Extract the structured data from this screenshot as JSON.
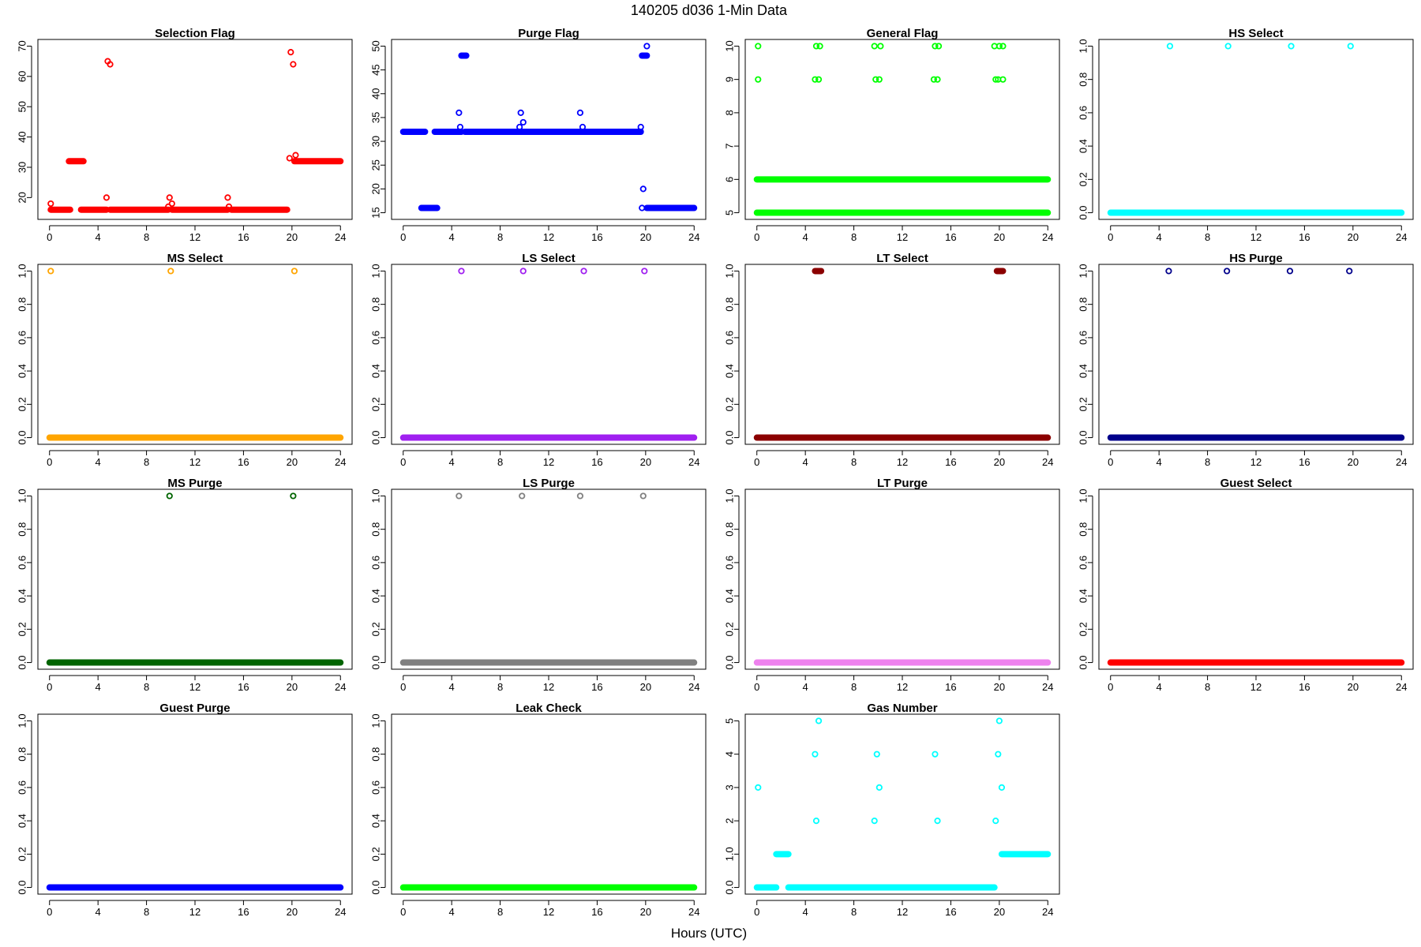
{
  "figure": {
    "title": "140205   d036   1-Min Data",
    "xlabel": "Hours (UTC)"
  },
  "chart_data": [
    {
      "type": "scatter",
      "title": "Selection Flag",
      "color": "#ff0000",
      "xlim": [
        0,
        24
      ],
      "ylim": [
        15,
        70
      ],
      "yticks": [
        20,
        30,
        40,
        50,
        60,
        70
      ],
      "segments": [
        {
          "x0": 0.1,
          "x1": 1.7,
          "y": 16
        },
        {
          "x0": 1.6,
          "x1": 2.8,
          "y": 32
        },
        {
          "x0": 2.6,
          "x1": 4.7,
          "y": 16
        },
        {
          "x0": 5.0,
          "x1": 9.8,
          "y": 16
        },
        {
          "x0": 10.1,
          "x1": 14.7,
          "y": 16
        },
        {
          "x0": 15.0,
          "x1": 19.6,
          "y": 16
        },
        {
          "x0": 20.2,
          "x1": 24.0,
          "y": 32
        }
      ],
      "points": [
        [
          0.1,
          18
        ],
        [
          4.7,
          20
        ],
        [
          4.8,
          65
        ],
        [
          5.0,
          64
        ],
        [
          9.8,
          17
        ],
        [
          9.9,
          20
        ],
        [
          10.1,
          18
        ],
        [
          14.7,
          20
        ],
        [
          14.8,
          17
        ],
        [
          19.8,
          33
        ],
        [
          19.9,
          68
        ],
        [
          20.1,
          64
        ],
        [
          20.3,
          34
        ]
      ]
    },
    {
      "type": "scatter",
      "title": "Purge Flag",
      "color": "#0000ff",
      "xlim": [
        0,
        24
      ],
      "ylim": [
        15,
        50
      ],
      "yticks": [
        15,
        20,
        25,
        30,
        35,
        40,
        45,
        50
      ],
      "segments": [
        {
          "x0": 0.0,
          "x1": 1.8,
          "y": 32
        },
        {
          "x0": 1.5,
          "x1": 2.8,
          "y": 16
        },
        {
          "x0": 2.6,
          "x1": 4.8,
          "y": 32
        },
        {
          "x0": 4.8,
          "x1": 5.2,
          "y": 48
        },
        {
          "x0": 5.1,
          "x1": 19.6,
          "y": 32
        },
        {
          "x0": 19.7,
          "x1": 20.1,
          "y": 48
        },
        {
          "x0": 20.1,
          "x1": 24.0,
          "y": 16
        }
      ],
      "points": [
        [
          4.6,
          36
        ],
        [
          4.7,
          33
        ],
        [
          9.6,
          33
        ],
        [
          9.7,
          36
        ],
        [
          9.9,
          34
        ],
        [
          14.6,
          36
        ],
        [
          14.8,
          33
        ],
        [
          19.6,
          33
        ],
        [
          19.7,
          16
        ],
        [
          19.8,
          20
        ],
        [
          20.1,
          50
        ]
      ]
    },
    {
      "type": "scatter",
      "title": "General Flag",
      "color": "#00ff00",
      "xlim": [
        0,
        24
      ],
      "ylim": [
        5,
        10
      ],
      "yticks": [
        5,
        6,
        7,
        8,
        9,
        10
      ],
      "segments": [
        {
          "x0": 0.0,
          "x1": 24.0,
          "y": 6
        },
        {
          "x0": 0.0,
          "x1": 24.0,
          "y": 5
        }
      ],
      "points": [
        [
          0.1,
          9
        ],
        [
          0.1,
          10
        ],
        [
          4.8,
          9
        ],
        [
          4.9,
          10
        ],
        [
          5.1,
          9
        ],
        [
          5.2,
          10
        ],
        [
          9.7,
          10
        ],
        [
          9.8,
          9
        ],
        [
          10.1,
          9
        ],
        [
          10.2,
          10
        ],
        [
          14.6,
          9
        ],
        [
          14.7,
          10
        ],
        [
          14.9,
          9
        ],
        [
          15.0,
          10
        ],
        [
          19.6,
          10
        ],
        [
          19.7,
          9
        ],
        [
          19.9,
          9
        ],
        [
          20.0,
          10
        ],
        [
          20.3,
          10
        ],
        [
          20.3,
          9
        ]
      ]
    },
    {
      "type": "scatter",
      "title": "HS Select",
      "color": "#00ffff",
      "xlim": [
        0,
        24
      ],
      "ylim": [
        0,
        1
      ],
      "yticks": [
        0,
        0.2,
        0.4,
        0.6,
        0.8,
        1
      ],
      "segments": [
        {
          "x0": 0.0,
          "x1": 24.0,
          "y": 0
        }
      ],
      "points": [
        [
          4.9,
          1
        ],
        [
          9.7,
          1
        ],
        [
          14.9,
          1
        ],
        [
          19.8,
          1
        ]
      ]
    },
    {
      "type": "scatter",
      "title": "MS Select",
      "color": "#ffa500",
      "xlim": [
        0,
        24
      ],
      "ylim": [
        0,
        1
      ],
      "yticks": [
        0,
        0.2,
        0.4,
        0.6,
        0.8,
        1
      ],
      "segments": [
        {
          "x0": 0.0,
          "x1": 24.0,
          "y": 0
        }
      ],
      "points": [
        [
          0.1,
          1
        ],
        [
          10.0,
          1
        ],
        [
          20.2,
          1
        ]
      ]
    },
    {
      "type": "scatter",
      "title": "LS Select",
      "color": "#a020f0",
      "xlim": [
        0,
        24
      ],
      "ylim": [
        0,
        1
      ],
      "yticks": [
        0,
        0.2,
        0.4,
        0.6,
        0.8,
        1
      ],
      "segments": [
        {
          "x0": 0.0,
          "x1": 24.0,
          "y": 0
        }
      ],
      "points": [
        [
          4.8,
          1
        ],
        [
          9.9,
          1
        ],
        [
          14.9,
          1
        ],
        [
          19.9,
          1
        ]
      ]
    },
    {
      "type": "scatter",
      "title": "LT Select",
      "color": "#8b0000",
      "xlim": [
        0,
        24
      ],
      "ylim": [
        0,
        1
      ],
      "yticks": [
        0,
        0.2,
        0.4,
        0.6,
        0.8,
        1
      ],
      "segments": [
        {
          "x0": 0.0,
          "x1": 24.0,
          "y": 0
        },
        {
          "x0": 4.8,
          "x1": 5.3,
          "y": 1
        },
        {
          "x0": 19.8,
          "x1": 20.3,
          "y": 1
        }
      ],
      "points": []
    },
    {
      "type": "scatter",
      "title": "HS Purge",
      "color": "#00008b",
      "xlim": [
        0,
        24
      ],
      "ylim": [
        0,
        1
      ],
      "yticks": [
        0,
        0.2,
        0.4,
        0.6,
        0.8,
        1
      ],
      "segments": [
        {
          "x0": 0.0,
          "x1": 24.0,
          "y": 0
        }
      ],
      "points": [
        [
          4.8,
          1
        ],
        [
          9.6,
          1
        ],
        [
          14.8,
          1
        ],
        [
          19.7,
          1
        ]
      ]
    },
    {
      "type": "scatter",
      "title": "MS Purge",
      "color": "#006400",
      "xlim": [
        0,
        24
      ],
      "ylim": [
        0,
        1
      ],
      "yticks": [
        0,
        0.2,
        0.4,
        0.6,
        0.8,
        1
      ],
      "segments": [
        {
          "x0": 0.0,
          "x1": 24.0,
          "y": 0
        }
      ],
      "points": [
        [
          9.9,
          1
        ],
        [
          20.1,
          1
        ]
      ]
    },
    {
      "type": "scatter",
      "title": "LS Purge",
      "color": "#808080",
      "xlim": [
        0,
        24
      ],
      "ylim": [
        0,
        1
      ],
      "yticks": [
        0,
        0.2,
        0.4,
        0.6,
        0.8,
        1
      ],
      "segments": [
        {
          "x0": 0.0,
          "x1": 24.0,
          "y": 0
        }
      ],
      "points": [
        [
          4.6,
          1
        ],
        [
          9.8,
          1
        ],
        [
          14.6,
          1
        ],
        [
          19.8,
          1
        ]
      ]
    },
    {
      "type": "scatter",
      "title": "LT Purge",
      "color": "#ee82ee",
      "xlim": [
        0,
        24
      ],
      "ylim": [
        0,
        1
      ],
      "yticks": [
        0,
        0.2,
        0.4,
        0.6,
        0.8,
        1
      ],
      "segments": [
        {
          "x0": 0.0,
          "x1": 24.0,
          "y": 0
        }
      ],
      "points": []
    },
    {
      "type": "scatter",
      "title": "Guest Select",
      "color": "#ff0000",
      "xlim": [
        0,
        24
      ],
      "ylim": [
        0,
        1
      ],
      "yticks": [
        0,
        0.2,
        0.4,
        0.6,
        0.8,
        1
      ],
      "segments": [
        {
          "x0": 0.0,
          "x1": 24.0,
          "y": 0
        }
      ],
      "points": []
    },
    {
      "type": "scatter",
      "title": "Guest Purge",
      "color": "#0000ff",
      "xlim": [
        0,
        24
      ],
      "ylim": [
        0,
        1
      ],
      "yticks": [
        0,
        0.2,
        0.4,
        0.6,
        0.8,
        1
      ],
      "segments": [
        {
          "x0": 0.0,
          "x1": 24.0,
          "y": 0
        }
      ],
      "points": []
    },
    {
      "type": "scatter",
      "title": "Leak Check",
      "color": "#00ff00",
      "xlim": [
        0,
        24
      ],
      "ylim": [
        0,
        1
      ],
      "yticks": [
        0,
        0.2,
        0.4,
        0.6,
        0.8,
        1
      ],
      "segments": [
        {
          "x0": 0.0,
          "x1": 24.0,
          "y": 0
        }
      ],
      "points": []
    },
    {
      "type": "scatter",
      "title": "Gas Number",
      "color": "#00ffff",
      "xlim": [
        0,
        24
      ],
      "ylim": [
        0,
        5
      ],
      "yticks": [
        0,
        1,
        2,
        3,
        4,
        5
      ],
      "segments": [
        {
          "x0": 0.0,
          "x1": 1.6,
          "y": 0
        },
        {
          "x0": 1.6,
          "x1": 2.6,
          "y": 1
        },
        {
          "x0": 2.6,
          "x1": 19.6,
          "y": 0
        },
        {
          "x0": 20.2,
          "x1": 24.0,
          "y": 1
        }
      ],
      "points": [
        [
          0.1,
          3
        ],
        [
          4.8,
          4
        ],
        [
          4.9,
          2
        ],
        [
          5.1,
          5
        ],
        [
          9.7,
          2
        ],
        [
          9.9,
          4
        ],
        [
          10.1,
          3
        ],
        [
          14.7,
          4
        ],
        [
          14.9,
          2
        ],
        [
          19.7,
          2
        ],
        [
          19.9,
          4
        ],
        [
          20.0,
          5
        ],
        [
          20.2,
          3
        ]
      ]
    }
  ]
}
